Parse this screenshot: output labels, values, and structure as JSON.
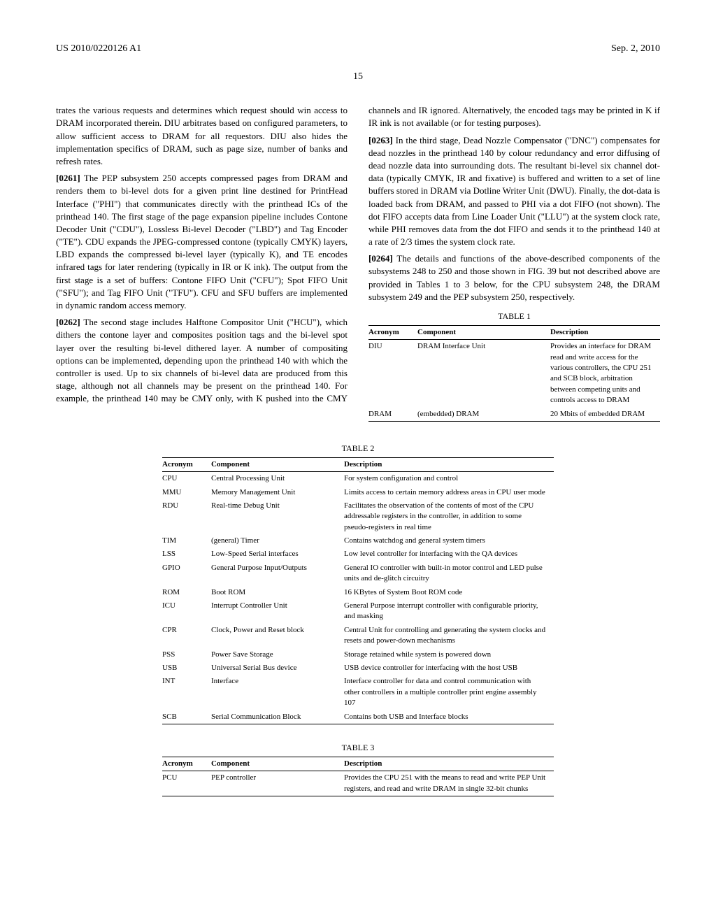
{
  "header": {
    "pubnum": "US 2010/0220126 A1",
    "date": "Sep. 2, 2010"
  },
  "pagenum": "15",
  "paragraphs": {
    "cont260": "trates the various requests and determines which request should win access to DRAM incorporated therein. DIU arbitrates based on configured parameters, to allow sufficient access to DRAM for all requestors. DIU also hides the implementation specifics of DRAM, such as page size, number of banks and refresh rates.",
    "p261_num": "[0261]",
    "p261": "The PEP subsystem 250 accepts compressed pages from DRAM and renders them to bi-level dots for a given print line destined for PrintHead Interface (\"PHI\") that communicates directly with the printhead ICs of the printhead 140. The first stage of the page expansion pipeline includes Contone Decoder Unit (\"CDU\"), Lossless Bi-level Decoder (\"LBD\") and Tag Encoder (\"TE\"). CDU expands the JPEG-compressed contone (typically CMYK) layers, LBD expands the compressed bi-level layer (typically K), and TE encodes infrared tags for later rendering (typically in IR or K ink). The output from the first stage is a set of buffers: Contone FIFO Unit (\"CFU\"); Spot FIFO Unit (\"SFU\"); and Tag FIFO Unit (\"TFU\"). CFU and SFU buffers are implemented in dynamic random access memory.",
    "p262_num": "[0262]",
    "p262": "The second stage includes Halftone Compositor Unit (\"HCU\"), which dithers the contone layer and composites position tags and the bi-level spot layer over the resulting bi-level dithered layer. A number of compositing options can be implemented, depending upon the printhead 140 with which the controller is used. Up to six channels of bi-level data are produced from this stage, although not all channels may be present on the printhead 140. For example, the printhead 140 may be CMY only, with K pushed into the CMY channels and IR ignored. Alternatively, the encoded tags may be printed in K if IR ink is not available (or for testing purposes).",
    "p263_num": "[0263]",
    "p263": "In the third stage, Dead Nozzle Compensator (\"DNC\") compensates for dead nozzles in the printhead 140 by colour redundancy and error diffusing of dead nozzle data into surrounding dots. The resultant bi-level six channel dot-data (typically CMYK, IR and fixative) is buffered and written to a set of line buffers stored in DRAM via Dotline Writer Unit (DWU). Finally, the dot-data is loaded back from DRAM, and passed to PHI via a dot FIFO (not shown). The dot FIFO accepts data from Line Loader Unit (\"LLU\") at the system clock rate, while PHI removes data from the dot FIFO and sends it to the printhead 140 at a rate of 2/3 times the system clock rate.",
    "p264_num": "[0264]",
    "p264": "The details and functions of the above-described components of the subsystems 248 to 250 and those shown in FIG. 39 but not described above are provided in Tables 1 to 3 below, for the CPU subsystem 248, the DRAM subsystem 249 and the PEP subsystem 250, respectively."
  },
  "table1": {
    "caption": "TABLE 1",
    "headers": [
      "Acronym",
      "Component",
      "Description"
    ],
    "rows": [
      [
        "DIU",
        "DRAM Interface Unit",
        "Provides an interface for DRAM read and write access for the various controllers, the CPU 251 and SCB block, arbitration between competing units and controls access to DRAM"
      ],
      [
        "DRAM",
        "(embedded) DRAM",
        "20 Mbits of embedded DRAM"
      ]
    ]
  },
  "table2": {
    "caption": "TABLE 2",
    "headers": [
      "Acronym",
      "Component",
      "Description"
    ],
    "rows": [
      [
        "CPU",
        "Central Processing Unit",
        "For system configuration and control"
      ],
      [
        "MMU",
        "Memory Management Unit",
        "Limits access to certain memory address areas in CPU user mode"
      ],
      [
        "RDU",
        "Real-time Debug Unit",
        "Facilitates the observation of the contents of most of the CPU addressable registers in the controller, in addition to some pseudo-registers in real time"
      ],
      [
        "TIM",
        "(general) Timer",
        "Contains watchdog and general system timers"
      ],
      [
        "LSS",
        "Low-Speed Serial interfaces",
        "Low level controller for interfacing with the QA devices"
      ],
      [
        "GPIO",
        "General Purpose Input/Outputs",
        "General IO controller with built-in motor control and LED pulse units and de-glitch circuitry"
      ],
      [
        "ROM",
        "Boot ROM",
        "16 KBytes of System Boot ROM code"
      ],
      [
        "ICU",
        "Interrupt Controller Unit",
        "General Purpose interrupt controller with configurable priority, and masking"
      ],
      [
        "CPR",
        "Clock, Power and Reset block",
        "Central Unit for controlling and generating the system clocks and resets and power-down mechanisms"
      ],
      [
        "PSS",
        "Power Save Storage",
        "Storage retained while system is powered down"
      ],
      [
        "USB",
        "Universal Serial Bus device",
        "USB device controller for interfacing with the host USB"
      ],
      [
        "INT",
        "Interface",
        "Interface controller for data and control communication with other controllers in a multiple controller print engine assembly 107"
      ],
      [
        "SCB",
        "Serial Communication Block",
        "Contains both USB and Interface blocks"
      ]
    ]
  },
  "table3": {
    "caption": "TABLE 3",
    "headers": [
      "Acronym",
      "Component",
      "Description"
    ],
    "rows": [
      [
        "PCU",
        "PEP controller",
        "Provides the CPU 251 with the means to read and write PEP Unit registers, and read and write DRAM in single 32-bit chunks"
      ]
    ]
  }
}
